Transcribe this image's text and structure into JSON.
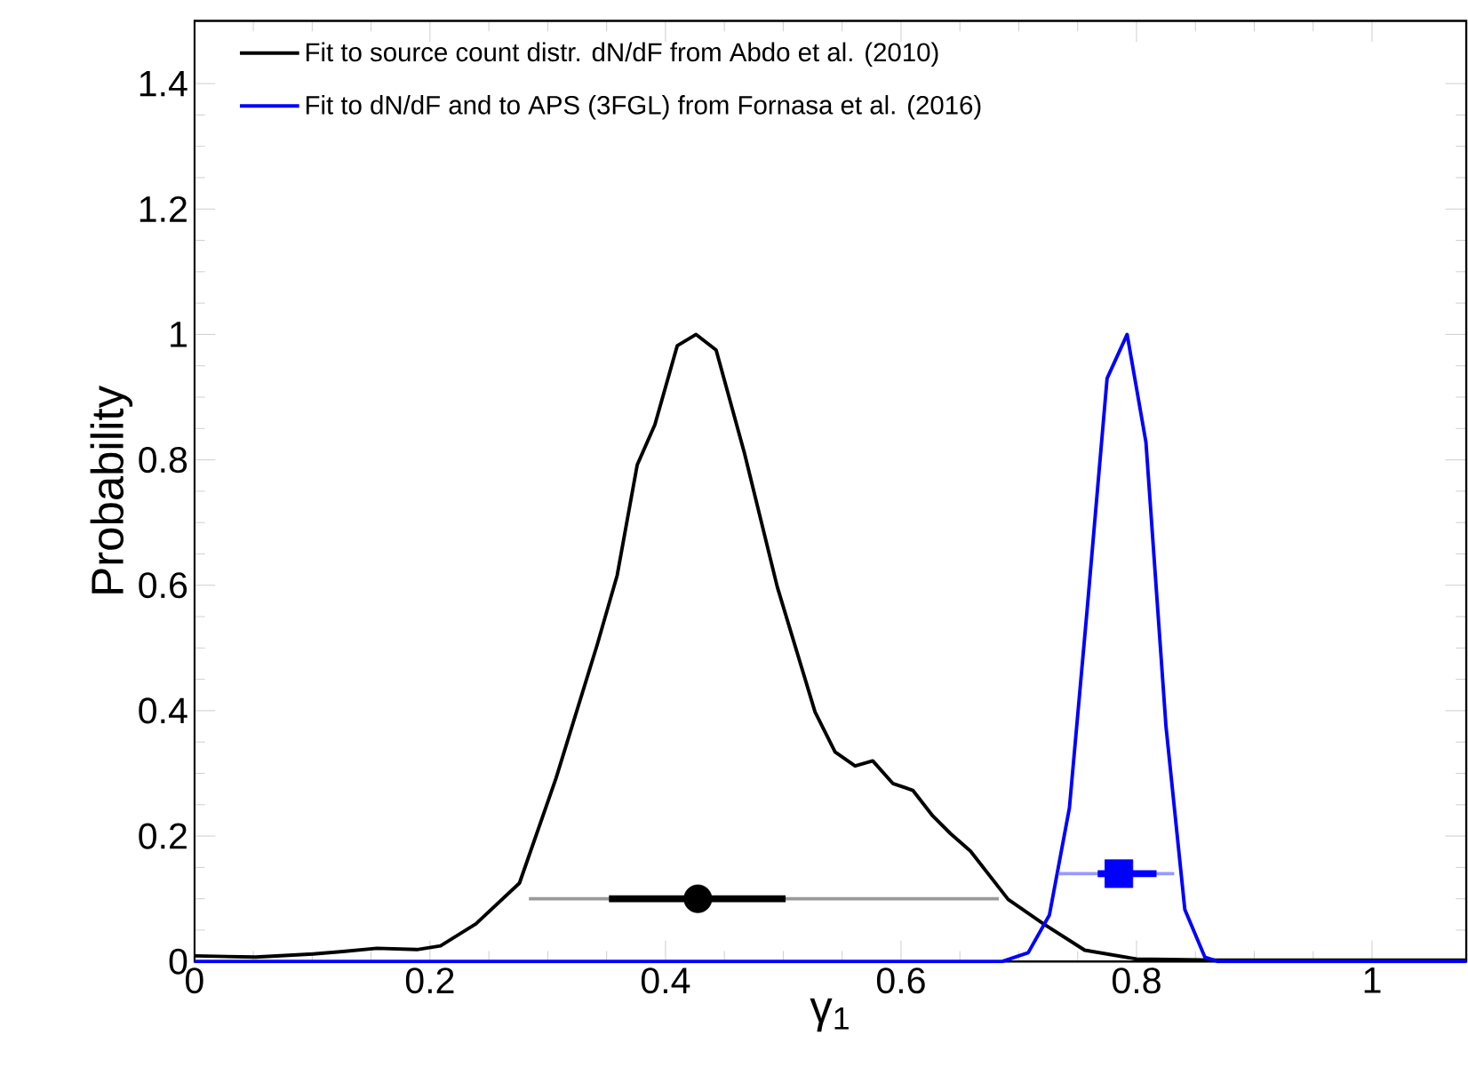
{
  "chart_data": {
    "type": "line",
    "xlabel": "γ$_{1}$",
    "ylabel": "Probability",
    "xlim": [
      0,
      1.08
    ],
    "ylim": [
      0,
      1.5
    ],
    "xticks": [
      0,
      0.2,
      0.4,
      0.6,
      0.8,
      1
    ],
    "yticks": [
      0,
      0.2,
      0.4,
      0.6,
      0.8,
      1,
      1.2,
      1.4
    ],
    "legend": "top left",
    "marker": "none",
    "series": [
      {
        "name": "Fit to source count distr. dN/dF from Abdo et al. (2010)",
        "color": "#000000",
        "x": [
          0.0,
          0.052,
          0.101,
          0.126,
          0.155,
          0.189,
          0.209,
          0.239,
          0.276,
          0.307,
          0.342,
          0.359,
          0.376,
          0.391,
          0.41,
          0.426,
          0.443,
          0.467,
          0.495,
          0.527,
          0.544,
          0.561,
          0.576,
          0.593,
          0.61,
          0.627,
          0.642,
          0.659,
          0.691,
          0.721,
          0.756,
          0.8,
          0.869,
          1.08
        ],
        "values": [
          0.009,
          0.007,
          0.012,
          0.016,
          0.021,
          0.019,
          0.025,
          0.06,
          0.125,
          0.292,
          0.505,
          0.616,
          0.792,
          0.856,
          0.982,
          1.0,
          0.975,
          0.811,
          0.597,
          0.398,
          0.334,
          0.312,
          0.32,
          0.284,
          0.273,
          0.232,
          0.204,
          0.176,
          0.099,
          0.06,
          0.018,
          0.004,
          0.002,
          0.002
        ]
      },
      {
        "name": "Fit to dN/dF and to APS (3FGL) from Fornasa et al. (2016)",
        "color": "#0000ff",
        "x": [
          0.0,
          0.686,
          0.708,
          0.726,
          0.743,
          0.758,
          0.775,
          0.792,
          0.808,
          0.825,
          0.841,
          0.858,
          0.869,
          1.08
        ],
        "values": [
          0.0,
          0.0,
          0.014,
          0.074,
          0.245,
          0.56,
          0.93,
          1.0,
          0.828,
          0.375,
          0.083,
          0.007,
          0.0,
          0.0
        ]
      },
      {
        "color": "#999999",
        "x": [
          0.284,
          0.683
        ],
        "values": [
          0.1,
          0.1
        ]
      },
      {
        "color": "#000000",
        "type": "scatter",
        "marker": "circle",
        "x": [
          0.4275
        ],
        "values": [
          0.1
        ],
        "xerrors": [
          [
            0.352,
            0.502
          ]
        ]
      },
      {
        "color": "#9999ff",
        "x": [
          0.734,
          0.832
        ],
        "values": [
          0.14,
          0.14
        ]
      },
      {
        "color": "#0000ff",
        "type": "scatter",
        "marker": "square",
        "x": [
          0.785
        ],
        "values": [
          0.14
        ],
        "xerrors": [
          [
            0.767,
            0.817
          ]
        ]
      }
    ]
  }
}
